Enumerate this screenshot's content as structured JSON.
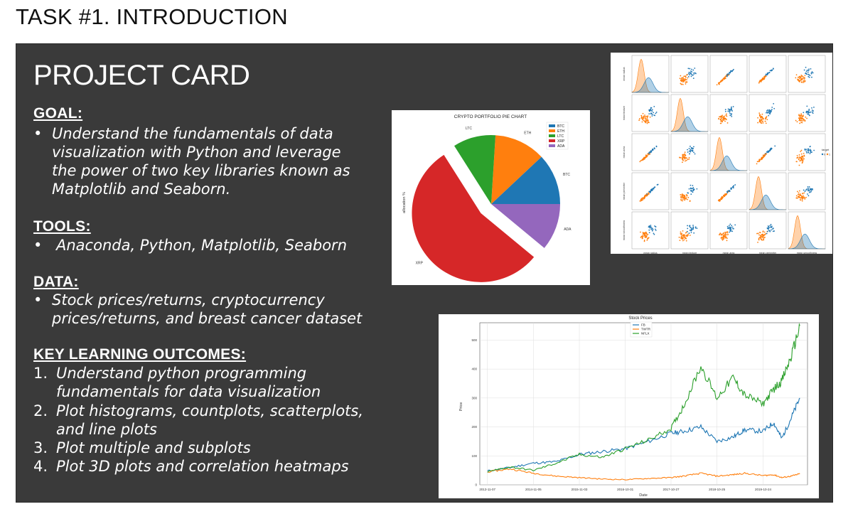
{
  "page": {
    "task_title": "TASK #1. INTRODUCTION",
    "card_title": "PROJECT CARD"
  },
  "goal": {
    "heading": "GOAL:",
    "bullet": "•",
    "text": "Understand the fundamentals of data visualization with Python and leverage the power of two key libraries known as Matplotlib and Seaborn."
  },
  "tools": {
    "heading": "TOOLS:",
    "bullet": "•",
    "text": "Anaconda, Python, Matplotlib, Seaborn"
  },
  "data_section": {
    "heading": "DATA:",
    "bullet": "•",
    "text": "Stock prices/returns, cryptocurrency prices/returns, and breast cancer dataset"
  },
  "outcomes": {
    "heading": "KEY LEARNING OUTCOMES:",
    "items": [
      {
        "num": "1.",
        "text": "Understand python programming fundamentals for data visualization"
      },
      {
        "num": "2.",
        "text": "Plot histograms, countplots, scatterplots, and line plots"
      },
      {
        "num": "3.",
        "text": "Plot multiple and subplots"
      },
      {
        "num": "4.",
        "text": "Plot 3D plots and correlation heatmaps"
      }
    ]
  },
  "pairplot": {
    "xlabels": [
      "mean radius",
      "mean texture",
      "mean area",
      "mean perimeter",
      "mean smoothness"
    ],
    "ylabels": [
      "mean radius",
      "mean texture",
      "mean area",
      "mean perimeter",
      "mean smoothness"
    ],
    "legend_title": "target",
    "legend_items": [
      "0",
      "1"
    ],
    "colors": {
      "class0": "#1f77b4",
      "class1": "#ff7f0e"
    }
  },
  "chart_data": [
    {
      "type": "pie",
      "title": "CRYPTO PORTFOLIO PIE CHART",
      "ylabel": "allocation %",
      "categories": [
        "BTC",
        "ETH",
        "LTC",
        "XRP",
        "ADA"
      ],
      "values": [
        12,
        12,
        10,
        55,
        11
      ],
      "explode": [
        0,
        0,
        0,
        0.2,
        0
      ],
      "colors": [
        "#1f77b4",
        "#ff7f0e",
        "#2ca02c",
        "#d62728",
        "#9467bd"
      ],
      "legend": "top-right",
      "legend_entries": [
        "BTC",
        "ETH",
        "LTC",
        "XRP",
        "ADA"
      ]
    },
    {
      "type": "line",
      "title": "Stock Prices",
      "xlabel": "Date",
      "ylabel": "Price",
      "x_ticks": [
        "2013-11-07",
        "2014-11-05",
        "2015-11-03",
        "2016-10-31",
        "2017-10-27",
        "2018-10-25",
        "2019-10-24"
      ],
      "y_ticks": [
        0,
        100,
        200,
        300,
        400,
        500
      ],
      "ylim": [
        0,
        560
      ],
      "grid": true,
      "legend": "top-center",
      "x": [
        "2013-11-07",
        "2014-05-07",
        "2014-11-05",
        "2015-05-05",
        "2015-11-03",
        "2016-05-01",
        "2016-10-31",
        "2017-05-01",
        "2017-10-27",
        "2018-02-01",
        "2018-06-20",
        "2018-10-25",
        "2019-03-01",
        "2019-06-01",
        "2019-10-24",
        "2020-01-15",
        "2020-03-20",
        "2020-06-01",
        "2020-08-10"
      ],
      "series": [
        {
          "name": "FB",
          "color": "#1f77b4",
          "values": [
            48,
            60,
            75,
            80,
            105,
            115,
            125,
            150,
            178,
            185,
            200,
            150,
            165,
            190,
            185,
            215,
            160,
            230,
            300
          ]
        },
        {
          "name": "TWTR",
          "color": "#ff7f0e",
          "values": [
            45,
            55,
            40,
            30,
            25,
            20,
            18,
            22,
            25,
            30,
            40,
            30,
            35,
            40,
            32,
            35,
            25,
            30,
            38
          ]
        },
        {
          "name": "NFLX",
          "color": "#2ca02c",
          "values": [
            45,
            62,
            50,
            75,
            105,
            95,
            125,
            155,
            195,
            270,
            410,
            300,
            370,
            310,
            280,
            330,
            360,
            440,
            550
          ]
        }
      ]
    }
  ]
}
